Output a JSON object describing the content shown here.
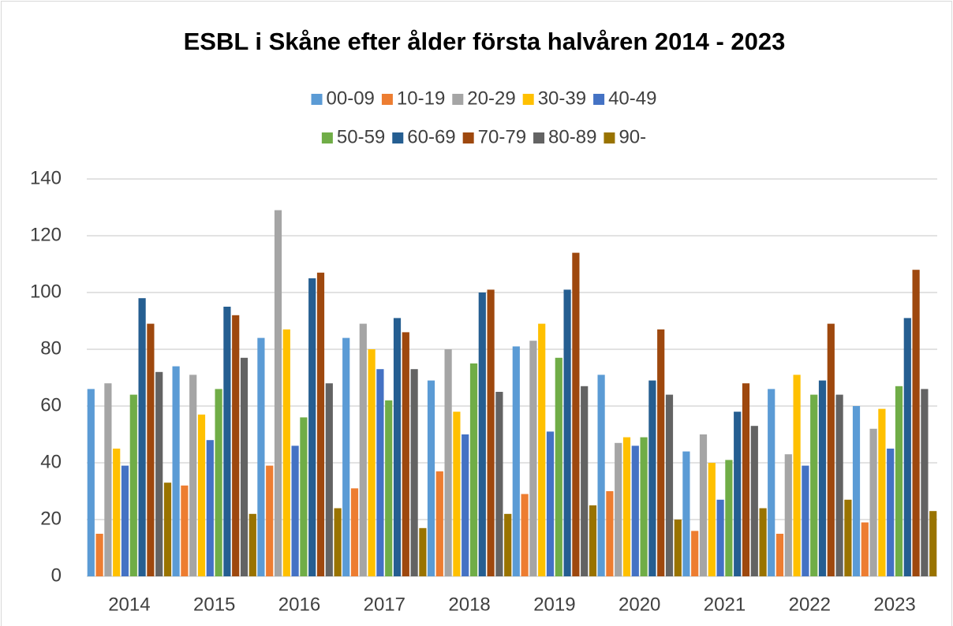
{
  "chart_data": {
    "type": "bar",
    "title": "ESBL i Skåne efter ålder första halvåren 2014 - 2023",
    "categories": [
      "2014",
      "2015",
      "2016",
      "2017",
      "2018",
      "2019",
      "2020",
      "2021",
      "2022",
      "2023"
    ],
    "series": [
      {
        "name": "00-09",
        "color": "#5b9bd5",
        "values": [
          66,
          74,
          84,
          84,
          69,
          81,
          71,
          44,
          66,
          60
        ]
      },
      {
        "name": "10-19",
        "color": "#ed7d31",
        "values": [
          15,
          32,
          39,
          31,
          37,
          29,
          30,
          16,
          15,
          19
        ]
      },
      {
        "name": "20-29",
        "color": "#a5a5a5",
        "values": [
          68,
          71,
          129,
          89,
          80,
          83,
          47,
          50,
          43,
          52
        ]
      },
      {
        "name": "30-39",
        "color": "#ffc000",
        "values": [
          45,
          57,
          87,
          80,
          58,
          89,
          49,
          40,
          71,
          59
        ]
      },
      {
        "name": "40-49",
        "color": "#4472c4",
        "values": [
          39,
          48,
          46,
          73,
          50,
          51,
          46,
          27,
          39,
          45
        ]
      },
      {
        "name": "50-59",
        "color": "#70ad47",
        "values": [
          64,
          66,
          56,
          62,
          75,
          77,
          49,
          41,
          64,
          67
        ]
      },
      {
        "name": "60-69",
        "color": "#255e91",
        "values": [
          98,
          95,
          105,
          91,
          100,
          101,
          69,
          58,
          69,
          91
        ]
      },
      {
        "name": "70-79",
        "color": "#9e480e",
        "values": [
          89,
          92,
          107,
          86,
          101,
          114,
          87,
          68,
          89,
          108
        ]
      },
      {
        "name": "80-89",
        "color": "#636363",
        "values": [
          72,
          77,
          68,
          73,
          65,
          67,
          64,
          53,
          64,
          66
        ]
      },
      {
        "name": "90-",
        "color": "#997300",
        "values": [
          33,
          22,
          24,
          17,
          22,
          25,
          20,
          24,
          27,
          23
        ]
      }
    ],
    "ylim": [
      0,
      140
    ],
    "yticks": [
      0,
      20,
      40,
      60,
      80,
      100,
      120,
      140
    ],
    "grid": true,
    "legend": "top"
  }
}
